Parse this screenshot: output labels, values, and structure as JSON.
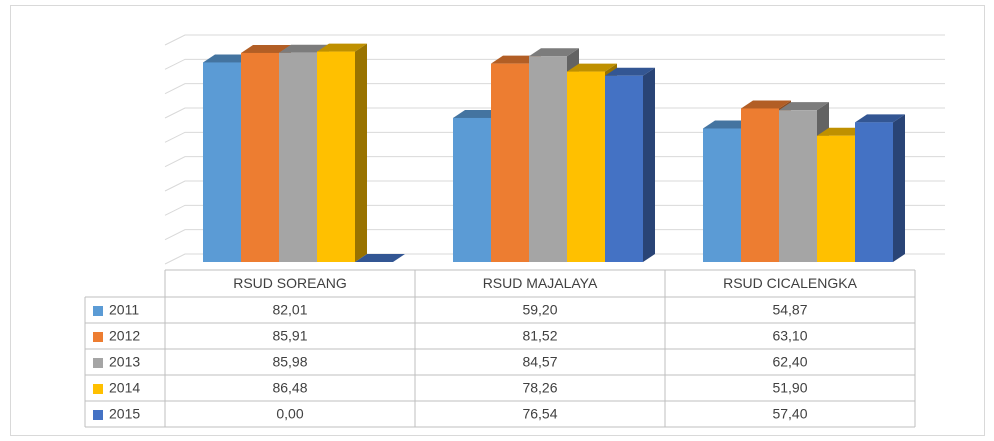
{
  "chart_data": {
    "type": "bar",
    "categories": [
      "RSUD SOREANG",
      "RSUD MAJALAYA",
      "RSUD CICALENGKA"
    ],
    "series": [
      {
        "name": "2011",
        "color": "#5b9bd5",
        "values": [
          82.01,
          59.2,
          54.87
        ],
        "value_labels": [
          "82,01",
          "59,20",
          "54,87"
        ]
      },
      {
        "name": "2012",
        "color": "#ed7d31",
        "values": [
          85.91,
          81.52,
          63.1
        ],
        "value_labels": [
          "85,91",
          "81,52",
          "63,10"
        ]
      },
      {
        "name": "2013",
        "color": "#a5a5a5",
        "values": [
          85.98,
          84.57,
          62.4
        ],
        "value_labels": [
          "85,98",
          "84,57",
          "62,40"
        ]
      },
      {
        "name": "2014",
        "color": "#ffc000",
        "values": [
          86.48,
          78.26,
          51.9
        ],
        "value_labels": [
          "86,48",
          "78,26",
          "51,90"
        ]
      },
      {
        "name": "2015",
        "color": "#4472c4",
        "values": [
          0.0,
          76.54,
          57.4
        ],
        "value_labels": [
          "0,00",
          "76,54",
          "57,40"
        ]
      }
    ],
    "ylim": [
      0,
      90
    ],
    "yticks": [
      0,
      10,
      20,
      30,
      40,
      50,
      60,
      70,
      80,
      90
    ],
    "grid": true
  }
}
